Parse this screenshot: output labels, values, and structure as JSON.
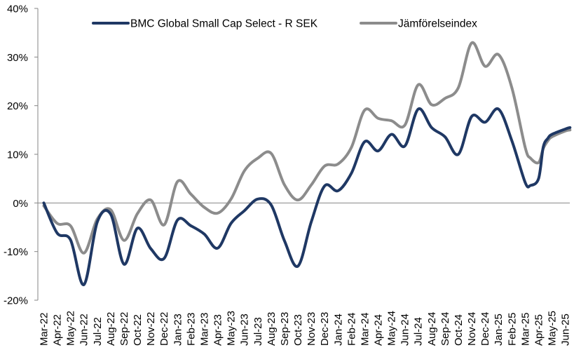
{
  "chart_data": {
    "type": "line",
    "title": "",
    "xlabel": "",
    "ylabel": "",
    "ylim": [
      -0.2,
      0.4
    ],
    "yticks": [
      0.4,
      0.3,
      0.2,
      0.1,
      0.0,
      -0.1,
      -0.2
    ],
    "ytick_labels": [
      "40%",
      "30%",
      "20%",
      "10%",
      "0%",
      "-10%",
      "-20%"
    ],
    "grid": false,
    "zero_line": true,
    "legend_position": "top",
    "categories": [
      "Mar-22",
      "Apr-22",
      "May-22",
      "Jun-22",
      "Jul-22",
      "Aug-22",
      "Sep-22",
      "Oct-22",
      "Nov-22",
      "Dec-22",
      "Jan-23",
      "Feb-23",
      "Mar-23",
      "Apr-23",
      "May-23",
      "Jun-23",
      "Jul-23",
      "Aug-23",
      "Sep-23",
      "Oct-23",
      "Nov-23",
      "Dec-23",
      "Jan-24",
      "Feb-24",
      "Mar-24",
      "Apr-24",
      "May-24",
      "Jun-24",
      "Jul-24",
      "Aug-24",
      "Sep-24",
      "Oct-24",
      "Nov-24",
      "Dec-24",
      "Jan-25",
      "Feb-25",
      "Mar-25",
      "Apr-25",
      "May-25",
      "Jun-25"
    ],
    "x": [
      0,
      1,
      2,
      3,
      4,
      5,
      6,
      7,
      8,
      9,
      10,
      11,
      12,
      13,
      14,
      15,
      16,
      17,
      18,
      19,
      20,
      21,
      22,
      23,
      24,
      25,
      26,
      27,
      28,
      29,
      30,
      31,
      32,
      33,
      34,
      35,
      36,
      36.4,
      37,
      37.35,
      37.7,
      38,
      39,
      39.35
    ],
    "series": [
      {
        "name": "BMC Global Small Cap Select - R SEK",
        "color": "#1f3864",
        "values": [
          0.0,
          -0.062,
          -0.076,
          -0.168,
          -0.039,
          -0.023,
          -0.126,
          -0.052,
          -0.094,
          -0.114,
          -0.035,
          -0.047,
          -0.064,
          -0.093,
          -0.042,
          -0.016,
          0.008,
          -0.004,
          -0.078,
          -0.13,
          -0.039,
          0.035,
          0.025,
          0.061,
          0.126,
          0.107,
          0.141,
          0.117,
          0.193,
          0.155,
          0.136,
          0.1,
          0.178,
          0.166,
          0.193,
          0.128,
          0.042,
          0.036,
          0.05,
          0.115,
          0.133,
          0.141,
          0.152,
          0.155
        ]
      },
      {
        "name": "Jämförelseindex",
        "color": "#8c8c8c",
        "values": [
          -0.006,
          -0.042,
          -0.047,
          -0.103,
          -0.033,
          -0.014,
          -0.077,
          -0.022,
          0.006,
          -0.045,
          0.044,
          0.018,
          -0.009,
          -0.021,
          0.008,
          0.066,
          0.092,
          0.102,
          0.037,
          0.006,
          0.037,
          0.076,
          0.08,
          0.114,
          0.191,
          0.174,
          0.169,
          0.16,
          0.243,
          0.202,
          0.215,
          0.237,
          0.329,
          0.281,
          0.305,
          0.237,
          0.114,
          0.092,
          0.083,
          0.112,
          0.128,
          0.136,
          0.148,
          0.15
        ]
      }
    ]
  }
}
